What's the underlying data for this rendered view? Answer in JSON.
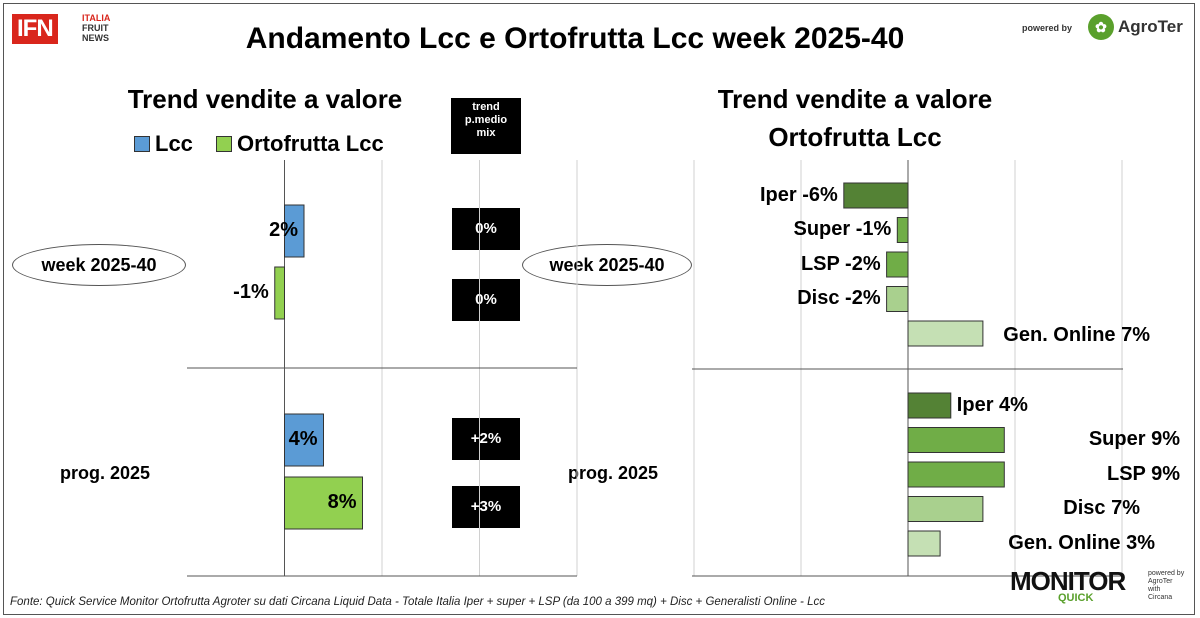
{
  "header": {
    "logo_ifn": "IFN",
    "logo_ifn_lines": [
      "ITALIA",
      "FRUIT",
      "NEWS"
    ],
    "title": "Andamento Lcc e Ortofrutta Lcc week 2025-40",
    "powered_by": "powered by",
    "agroter_logo": "AgroTer"
  },
  "left_panel": {
    "title": "Trend vendite a valore",
    "legend": [
      {
        "label": "Lcc",
        "color": "#5b9bd5"
      },
      {
        "label": "Ortofrutta Lcc",
        "color": "#92d050"
      }
    ],
    "trend_header": [
      "trend",
      "p.medio",
      "mix"
    ],
    "row_labels": [
      "week 2025-40",
      "prog. 2025"
    ],
    "trend_values": [
      "0%",
      "0%",
      "+2%",
      "+3%"
    ]
  },
  "right_panel": {
    "title_lines": [
      "Trend vendite a valore",
      "Ortofrutta Lcc"
    ],
    "row_labels": [
      "week 2025-40",
      "prog. 2025"
    ]
  },
  "chart_data": [
    {
      "type": "bar",
      "orientation": "horizontal",
      "title": "Trend vendite a valore",
      "groups": [
        "week 2025-40",
        "prog. 2025"
      ],
      "series": [
        {
          "name": "Lcc",
          "color": "#5b9bd5",
          "values": [
            2,
            4
          ],
          "labels": [
            "2%",
            "4%"
          ]
        },
        {
          "name": "Ortofrutta Lcc",
          "color": "#92d050",
          "values": [
            -1,
            8
          ],
          "labels": [
            "-1%",
            "8%"
          ]
        }
      ],
      "xlim": [
        -10,
        30
      ],
      "unit": "%",
      "grid": true
    },
    {
      "type": "bar",
      "orientation": "horizontal",
      "title": "Trend vendite a valore Ortofrutta Lcc",
      "groups": [
        "week 2025-40",
        "prog. 2025"
      ],
      "channels": [
        "Iper",
        "Super",
        "LSP",
        "Disc",
        "Gen. Online"
      ],
      "channel_colors": [
        "#548235",
        "#70ad47",
        "#70ad47",
        "#a9d08e",
        "#c5e0b4"
      ],
      "values": [
        [
          -6,
          -1,
          -2,
          -2,
          7
        ],
        [
          4,
          9,
          9,
          7,
          3
        ]
      ],
      "labels": [
        [
          "Iper -6%",
          "Super -1%",
          "LSP -2%",
          "Disc -2%",
          "Gen. Online 7%"
        ],
        [
          "Iper 4%",
          "Super 9%",
          "LSP 9%",
          "Disc 7%",
          "Gen. Online 3%"
        ]
      ],
      "xlim": [
        -20,
        10
      ],
      "unit": "%",
      "grid": true
    }
  ],
  "footer": {
    "source": "Fonte: Quick Service Monitor Ortofrutta Agroter su dati Circana Liquid Data - Totale Italia Iper + super + LSP (da 100 a 399 mq) + Disc + Generalisti Online - Lcc",
    "monitor_logo": "MONITOR",
    "monitor_quick": "QUICK",
    "monitor_small": [
      "powered by",
      "AgroTer",
      "with",
      "Circana"
    ]
  }
}
